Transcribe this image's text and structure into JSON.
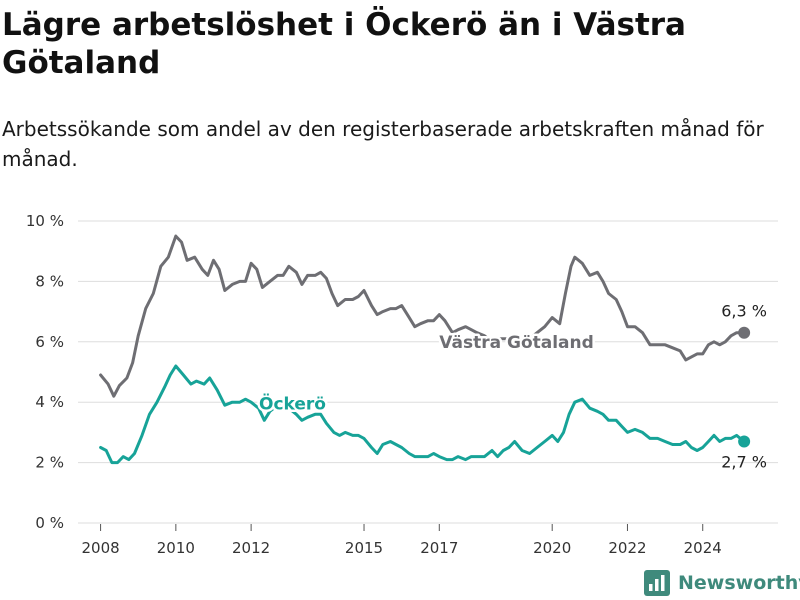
{
  "chart_data": {
    "type": "line",
    "title": "Lägre arbetslöshet i Öckerö än i Västra Götaland",
    "subtitle": "Arbetssökande som andel av den registerbaserade arbetskraften månad för månad.",
    "xlabel": "",
    "ylabel": "",
    "xlim": [
      2007.4,
      2026.0
    ],
    "ylim": [
      0,
      10
    ],
    "grid": "horizontal",
    "x_ticks": [
      2008,
      2010,
      2012,
      2015,
      2017,
      2020,
      2022,
      2024
    ],
    "y_ticks": [
      0,
      2,
      4,
      6,
      8,
      10
    ],
    "y_tick_labels": [
      "0 %",
      "2 %",
      "4 %",
      "6 %",
      "8 %",
      "10 %"
    ],
    "series": [
      {
        "name": "Västra Götaland",
        "color": "#6e6e73",
        "end_label": "6,3 %",
        "points": [
          [
            2008.0,
            4.9
          ],
          [
            2008.2,
            4.6
          ],
          [
            2008.35,
            4.2
          ],
          [
            2008.5,
            4.55
          ],
          [
            2008.7,
            4.8
          ],
          [
            2008.85,
            5.3
          ],
          [
            2009.0,
            6.2
          ],
          [
            2009.2,
            7.1
          ],
          [
            2009.4,
            7.6
          ],
          [
            2009.6,
            8.5
          ],
          [
            2009.8,
            8.8
          ],
          [
            2010.0,
            9.5
          ],
          [
            2010.15,
            9.3
          ],
          [
            2010.3,
            8.7
          ],
          [
            2010.5,
            8.8
          ],
          [
            2010.7,
            8.4
          ],
          [
            2010.85,
            8.2
          ],
          [
            2011.0,
            8.7
          ],
          [
            2011.15,
            8.4
          ],
          [
            2011.3,
            7.7
          ],
          [
            2011.5,
            7.9
          ],
          [
            2011.7,
            8.0
          ],
          [
            2011.85,
            8.0
          ],
          [
            2012.0,
            8.6
          ],
          [
            2012.15,
            8.4
          ],
          [
            2012.3,
            7.8
          ],
          [
            2012.5,
            8.0
          ],
          [
            2012.7,
            8.2
          ],
          [
            2012.85,
            8.2
          ],
          [
            2013.0,
            8.5
          ],
          [
            2013.2,
            8.3
          ],
          [
            2013.35,
            7.9
          ],
          [
            2013.5,
            8.2
          ],
          [
            2013.7,
            8.2
          ],
          [
            2013.85,
            8.3
          ],
          [
            2014.0,
            8.1
          ],
          [
            2014.15,
            7.6
          ],
          [
            2014.3,
            7.2
          ],
          [
            2014.5,
            7.4
          ],
          [
            2014.7,
            7.4
          ],
          [
            2014.85,
            7.5
          ],
          [
            2015.0,
            7.7
          ],
          [
            2015.2,
            7.2
          ],
          [
            2015.35,
            6.9
          ],
          [
            2015.5,
            7.0
          ],
          [
            2015.7,
            7.1
          ],
          [
            2015.85,
            7.1
          ],
          [
            2016.0,
            7.2
          ],
          [
            2016.2,
            6.8
          ],
          [
            2016.35,
            6.5
          ],
          [
            2016.5,
            6.6
          ],
          [
            2016.7,
            6.7
          ],
          [
            2016.85,
            6.7
          ],
          [
            2017.0,
            6.9
          ],
          [
            2017.15,
            6.7
          ],
          [
            2017.35,
            6.3
          ],
          [
            2017.5,
            6.4
          ],
          [
            2017.7,
            6.5
          ],
          [
            2017.85,
            6.4
          ],
          [
            2018.0,
            6.3
          ],
          [
            2018.2,
            6.2
          ],
          [
            2018.4,
            6.0
          ],
          [
            2018.6,
            6.1
          ],
          [
            2018.8,
            6.1
          ],
          [
            2019.0,
            6.0
          ],
          [
            2019.2,
            5.9
          ],
          [
            2019.4,
            6.1
          ],
          [
            2019.6,
            6.3
          ],
          [
            2019.8,
            6.5
          ],
          [
            2020.0,
            6.8
          ],
          [
            2020.2,
            6.6
          ],
          [
            2020.35,
            7.6
          ],
          [
            2020.5,
            8.5
          ],
          [
            2020.6,
            8.8
          ],
          [
            2020.8,
            8.6
          ],
          [
            2021.0,
            8.2
          ],
          [
            2021.2,
            8.3
          ],
          [
            2021.35,
            8.0
          ],
          [
            2021.5,
            7.6
          ],
          [
            2021.7,
            7.4
          ],
          [
            2021.85,
            7.0
          ],
          [
            2022.0,
            6.5
          ],
          [
            2022.2,
            6.5
          ],
          [
            2022.4,
            6.3
          ],
          [
            2022.6,
            5.9
          ],
          [
            2022.8,
            5.9
          ],
          [
            2023.0,
            5.9
          ],
          [
            2023.2,
            5.8
          ],
          [
            2023.4,
            5.7
          ],
          [
            2023.55,
            5.4
          ],
          [
            2023.7,
            5.5
          ],
          [
            2023.85,
            5.6
          ],
          [
            2024.0,
            5.6
          ],
          [
            2024.15,
            5.9
          ],
          [
            2024.3,
            6.0
          ],
          [
            2024.45,
            5.9
          ],
          [
            2024.6,
            6.0
          ],
          [
            2024.75,
            6.2
          ],
          [
            2024.9,
            6.3
          ],
          [
            2025.1,
            6.3
          ]
        ]
      },
      {
        "name": "Öckerö",
        "color": "#17a398",
        "end_label": "2,7 %",
        "points": [
          [
            2008.0,
            2.5
          ],
          [
            2008.15,
            2.4
          ],
          [
            2008.3,
            2.0
          ],
          [
            2008.45,
            2.0
          ],
          [
            2008.6,
            2.2
          ],
          [
            2008.75,
            2.1
          ],
          [
            2008.9,
            2.3
          ],
          [
            2009.1,
            2.9
          ],
          [
            2009.3,
            3.6
          ],
          [
            2009.5,
            4.0
          ],
          [
            2009.7,
            4.5
          ],
          [
            2009.85,
            4.9
          ],
          [
            2010.0,
            5.2
          ],
          [
            2010.2,
            4.9
          ],
          [
            2010.4,
            4.6
          ],
          [
            2010.55,
            4.7
          ],
          [
            2010.75,
            4.6
          ],
          [
            2010.9,
            4.8
          ],
          [
            2011.1,
            4.4
          ],
          [
            2011.3,
            3.9
          ],
          [
            2011.5,
            4.0
          ],
          [
            2011.7,
            4.0
          ],
          [
            2011.85,
            4.1
          ],
          [
            2012.0,
            4.0
          ],
          [
            2012.2,
            3.8
          ],
          [
            2012.35,
            3.4
          ],
          [
            2012.5,
            3.7
          ],
          [
            2012.7,
            3.9
          ],
          [
            2012.85,
            3.9
          ],
          [
            2013.0,
            3.8
          ],
          [
            2013.2,
            3.6
          ],
          [
            2013.35,
            3.4
          ],
          [
            2013.5,
            3.5
          ],
          [
            2013.7,
            3.6
          ],
          [
            2013.85,
            3.6
          ],
          [
            2014.0,
            3.3
          ],
          [
            2014.2,
            3.0
          ],
          [
            2014.35,
            2.9
          ],
          [
            2014.5,
            3.0
          ],
          [
            2014.7,
            2.9
          ],
          [
            2014.85,
            2.9
          ],
          [
            2015.0,
            2.8
          ],
          [
            2015.2,
            2.5
          ],
          [
            2015.35,
            2.3
          ],
          [
            2015.5,
            2.6
          ],
          [
            2015.7,
            2.7
          ],
          [
            2015.85,
            2.6
          ],
          [
            2016.0,
            2.5
          ],
          [
            2016.2,
            2.3
          ],
          [
            2016.35,
            2.2
          ],
          [
            2016.5,
            2.2
          ],
          [
            2016.7,
            2.2
          ],
          [
            2016.85,
            2.3
          ],
          [
            2017.0,
            2.2
          ],
          [
            2017.2,
            2.1
          ],
          [
            2017.35,
            2.1
          ],
          [
            2017.5,
            2.2
          ],
          [
            2017.7,
            2.1
          ],
          [
            2017.85,
            2.2
          ],
          [
            2018.0,
            2.2
          ],
          [
            2018.2,
            2.2
          ],
          [
            2018.4,
            2.4
          ],
          [
            2018.55,
            2.2
          ],
          [
            2018.7,
            2.4
          ],
          [
            2018.85,
            2.5
          ],
          [
            2019.0,
            2.7
          ],
          [
            2019.2,
            2.4
          ],
          [
            2019.4,
            2.3
          ],
          [
            2019.6,
            2.5
          ],
          [
            2019.8,
            2.7
          ],
          [
            2020.0,
            2.9
          ],
          [
            2020.15,
            2.7
          ],
          [
            2020.3,
            3.0
          ],
          [
            2020.45,
            3.6
          ],
          [
            2020.6,
            4.0
          ],
          [
            2020.8,
            4.1
          ],
          [
            2021.0,
            3.8
          ],
          [
            2021.2,
            3.7
          ],
          [
            2021.35,
            3.6
          ],
          [
            2021.5,
            3.4
          ],
          [
            2021.7,
            3.4
          ],
          [
            2021.85,
            3.2
          ],
          [
            2022.0,
            3.0
          ],
          [
            2022.2,
            3.1
          ],
          [
            2022.4,
            3.0
          ],
          [
            2022.6,
            2.8
          ],
          [
            2022.8,
            2.8
          ],
          [
            2023.0,
            2.7
          ],
          [
            2023.2,
            2.6
          ],
          [
            2023.4,
            2.6
          ],
          [
            2023.55,
            2.7
          ],
          [
            2023.7,
            2.5
          ],
          [
            2023.85,
            2.4
          ],
          [
            2024.0,
            2.5
          ],
          [
            2024.15,
            2.7
          ],
          [
            2024.3,
            2.9
          ],
          [
            2024.45,
            2.7
          ],
          [
            2024.6,
            2.8
          ],
          [
            2024.75,
            2.8
          ],
          [
            2024.9,
            2.9
          ],
          [
            2025.1,
            2.7
          ]
        ]
      }
    ]
  },
  "brand": {
    "name": "Newsworthy",
    "color": "#3f8a7c"
  }
}
